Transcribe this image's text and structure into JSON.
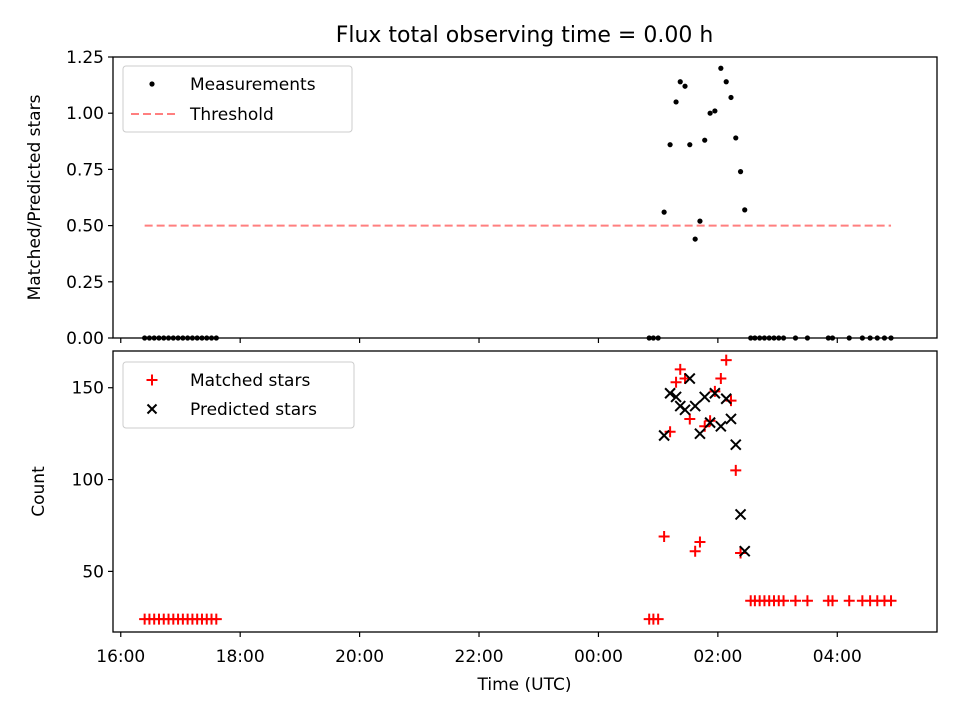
{
  "title": "Flux total observing time = 0.00 h",
  "chart_data": [
    {
      "type": "scatter",
      "panel": "top",
      "title": "Flux total observing time = 0.00 h",
      "xlabel": "",
      "ylabel": "Matched/Predicted stars",
      "x_unit": "hours since 16:00 UTC",
      "xlim": [
        15.87,
        29.67
      ],
      "ylim": [
        0,
        1.25
      ],
      "yticks": [
        0.0,
        0.25,
        0.5,
        0.75,
        1.0,
        1.25
      ],
      "ytick_labels": [
        "0.00",
        "0.25",
        "0.50",
        "0.75",
        "1.00",
        "1.25"
      ],
      "legend": {
        "placement": "top-left",
        "entries": [
          "Measurements",
          "Threshold"
        ]
      },
      "series": [
        {
          "name": "Measurements",
          "marker": "dot",
          "color": "#000000",
          "points": [
            [
              16.4,
              0
            ],
            [
              16.48,
              0
            ],
            [
              16.56,
              0
            ],
            [
              16.64,
              0
            ],
            [
              16.72,
              0
            ],
            [
              16.8,
              0
            ],
            [
              16.88,
              0
            ],
            [
              16.96,
              0
            ],
            [
              17.04,
              0
            ],
            [
              17.12,
              0
            ],
            [
              17.2,
              0
            ],
            [
              17.28,
              0
            ],
            [
              17.36,
              0
            ],
            [
              17.44,
              0
            ],
            [
              17.52,
              0
            ],
            [
              17.6,
              0
            ],
            [
              24.85,
              0
            ],
            [
              24.92,
              0
            ],
            [
              25.0,
              0
            ],
            [
              25.1,
              0.56
            ],
            [
              25.2,
              0.86
            ],
            [
              25.3,
              1.05
            ],
            [
              25.37,
              1.14
            ],
            [
              25.45,
              1.12
            ],
            [
              25.53,
              0.86
            ],
            [
              25.62,
              0.44
            ],
            [
              25.7,
              0.52
            ],
            [
              25.78,
              0.88
            ],
            [
              25.87,
              1.0
            ],
            [
              25.95,
              1.01
            ],
            [
              26.05,
              1.2
            ],
            [
              26.14,
              1.14
            ],
            [
              26.22,
              1.07
            ],
            [
              26.3,
              0.89
            ],
            [
              26.38,
              0.74
            ],
            [
              26.45,
              0.57
            ],
            [
              26.55,
              0
            ],
            [
              26.62,
              0
            ],
            [
              26.7,
              0
            ],
            [
              26.78,
              0
            ],
            [
              26.86,
              0
            ],
            [
              26.94,
              0
            ],
            [
              27.02,
              0
            ],
            [
              27.1,
              0
            ],
            [
              27.3,
              0
            ],
            [
              27.5,
              0
            ],
            [
              27.85,
              0
            ],
            [
              27.92,
              0
            ],
            [
              28.2,
              0
            ],
            [
              28.42,
              0
            ],
            [
              28.55,
              0
            ],
            [
              28.67,
              0
            ],
            [
              28.79,
              0
            ],
            [
              28.9,
              0
            ]
          ]
        },
        {
          "name": "Threshold",
          "style": "dashed",
          "color": "#ff7f7f",
          "points": [
            [
              16.4,
              0.5
            ],
            [
              28.9,
              0.5
            ]
          ]
        }
      ]
    },
    {
      "type": "scatter",
      "panel": "bottom",
      "xlabel": "Time (UTC)",
      "ylabel": "Count",
      "x_unit": "hours since 16:00 UTC",
      "xlim": [
        15.87,
        29.67
      ],
      "ylim": [
        17,
        170
      ],
      "xticks": [
        16,
        18,
        20,
        22,
        24,
        26,
        28
      ],
      "xtick_labels": [
        "16:00",
        "18:00",
        "20:00",
        "22:00",
        "00:00",
        "02:00",
        "04:00"
      ],
      "yticks": [
        50,
        100,
        150
      ],
      "ytick_labels": [
        "50",
        "100",
        "150"
      ],
      "legend": {
        "placement": "top-left",
        "entries": [
          "Matched stars",
          "Predicted stars"
        ]
      },
      "series": [
        {
          "name": "Matched stars",
          "marker": "plus",
          "color": "#ff0000",
          "points": [
            [
              16.4,
              24
            ],
            [
              16.48,
              24
            ],
            [
              16.56,
              24
            ],
            [
              16.64,
              24
            ],
            [
              16.72,
              24
            ],
            [
              16.8,
              24
            ],
            [
              16.88,
              24
            ],
            [
              16.96,
              24
            ],
            [
              17.04,
              24
            ],
            [
              17.12,
              24
            ],
            [
              17.2,
              24
            ],
            [
              17.28,
              24
            ],
            [
              17.36,
              24
            ],
            [
              17.44,
              24
            ],
            [
              17.52,
              24
            ],
            [
              17.6,
              24
            ],
            [
              24.85,
              24
            ],
            [
              24.92,
              24
            ],
            [
              25.0,
              24
            ],
            [
              25.1,
              69
            ],
            [
              25.2,
              126
            ],
            [
              25.3,
              153
            ],
            [
              25.37,
              160
            ],
            [
              25.45,
              155
            ],
            [
              25.53,
              133
            ],
            [
              25.62,
              61
            ],
            [
              25.7,
              66
            ],
            [
              25.78,
              129
            ],
            [
              25.87,
              132
            ],
            [
              25.95,
              148
            ],
            [
              26.05,
              155
            ],
            [
              26.14,
              165
            ],
            [
              26.22,
              143
            ],
            [
              26.3,
              105
            ],
            [
              26.38,
              60
            ],
            [
              26.55,
              34
            ],
            [
              26.62,
              34
            ],
            [
              26.7,
              34
            ],
            [
              26.78,
              34
            ],
            [
              26.86,
              34
            ],
            [
              26.94,
              34
            ],
            [
              27.02,
              34
            ],
            [
              27.1,
              34
            ],
            [
              27.3,
              34
            ],
            [
              27.5,
              34
            ],
            [
              27.85,
              34
            ],
            [
              27.92,
              34
            ],
            [
              28.2,
              34
            ],
            [
              28.42,
              34
            ],
            [
              28.55,
              34
            ],
            [
              28.67,
              34
            ],
            [
              28.79,
              34
            ],
            [
              28.9,
              34
            ]
          ]
        },
        {
          "name": "Predicted stars",
          "marker": "x",
          "color": "#000000",
          "points": [
            [
              25.1,
              124
            ],
            [
              25.2,
              147
            ],
            [
              25.3,
              145
            ],
            [
              25.37,
              140
            ],
            [
              25.45,
              138
            ],
            [
              25.53,
              155
            ],
            [
              25.62,
              140
            ],
            [
              25.7,
              125
            ],
            [
              25.78,
              145
            ],
            [
              25.87,
              131
            ],
            [
              25.95,
              147
            ],
            [
              26.05,
              129
            ],
            [
              26.14,
              144
            ],
            [
              26.22,
              133
            ],
            [
              26.3,
              119
            ],
            [
              26.38,
              81
            ],
            [
              26.45,
              61
            ]
          ]
        }
      ]
    }
  ]
}
